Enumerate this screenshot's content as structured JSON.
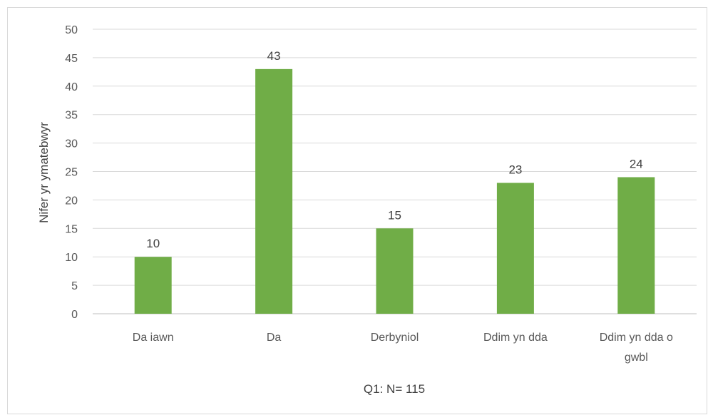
{
  "chart_data": {
    "type": "bar",
    "categories": [
      "Da iawn",
      "Da",
      "Derbyniol",
      "Ddim yn dda",
      "Ddim yn dda o gwbl"
    ],
    "values": [
      10,
      43,
      15,
      23,
      24
    ],
    "data_labels": [
      "10",
      "43",
      "15",
      "23",
      "24"
    ],
    "title": "",
    "xlabel": "Q1: N= 115",
    "ylabel": "Nifer yr ymatebwyr",
    "ylim": [
      0,
      50
    ],
    "yticks": [
      0,
      5,
      10,
      15,
      20,
      25,
      30,
      35,
      40,
      45,
      50
    ],
    "grid": true,
    "legend": "none",
    "bar_color": "#70ad47",
    "grid_color": "#d9d9d9"
  }
}
